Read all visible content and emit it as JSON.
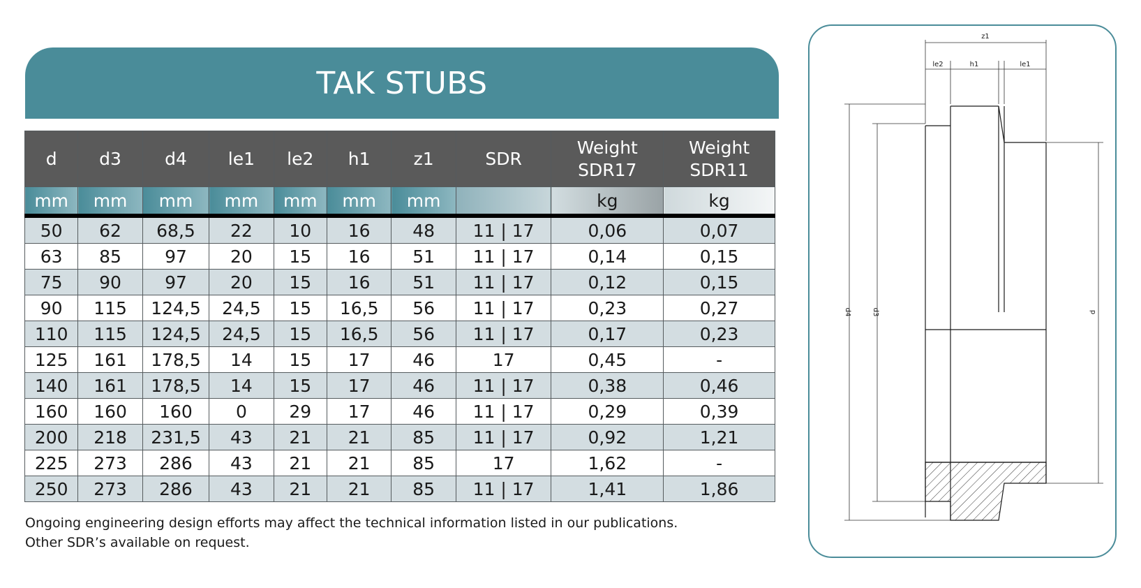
{
  "title": "TAK STUBS",
  "table": {
    "headers": [
      {
        "line1": "d",
        "line2": ""
      },
      {
        "line1": "d3",
        "line2": ""
      },
      {
        "line1": "d4",
        "line2": ""
      },
      {
        "line1": "le1",
        "line2": ""
      },
      {
        "line1": "le2",
        "line2": ""
      },
      {
        "line1": "h1",
        "line2": ""
      },
      {
        "line1": "z1",
        "line2": ""
      },
      {
        "line1": "SDR",
        "line2": ""
      },
      {
        "line1": "Weight",
        "line2": "SDR17"
      },
      {
        "line1": "Weight",
        "line2": "SDR11"
      }
    ],
    "units": [
      "mm",
      "mm",
      "mm",
      "mm",
      "mm",
      "mm",
      "mm",
      "",
      "kg",
      "kg"
    ],
    "rows": [
      [
        "50",
        "62",
        "68,5",
        "22",
        "10",
        "16",
        "48",
        "11 | 17",
        "0,06",
        "0,07"
      ],
      [
        "63",
        "85",
        "97",
        "20",
        "15",
        "16",
        "51",
        "11 | 17",
        "0,14",
        "0,15"
      ],
      [
        "75",
        "90",
        "97",
        "20",
        "15",
        "16",
        "51",
        "11 | 17",
        "0,12",
        "0,15"
      ],
      [
        "90",
        "115",
        "124,5",
        "24,5",
        "15",
        "16,5",
        "56",
        "11 | 17",
        "0,23",
        "0,27"
      ],
      [
        "110",
        "115",
        "124,5",
        "24,5",
        "15",
        "16,5",
        "56",
        "11 | 17",
        "0,17",
        "0,23"
      ],
      [
        "125",
        "161",
        "178,5",
        "14",
        "15",
        "17",
        "46",
        "17",
        "0,45",
        "-"
      ],
      [
        "140",
        "161",
        "178,5",
        "14",
        "15",
        "17",
        "46",
        "11 | 17",
        "0,38",
        "0,46"
      ],
      [
        "160",
        "160",
        "160",
        "0",
        "29",
        "17",
        "46",
        "11 | 17",
        "0,29",
        "0,39"
      ],
      [
        "200",
        "218",
        "231,5",
        "43",
        "21",
        "21",
        "85",
        "11 | 17",
        "0,92",
        "1,21"
      ],
      [
        "225",
        "273",
        "286",
        "43",
        "21",
        "21",
        "85",
        "17",
        "1,62",
        "-"
      ],
      [
        "250",
        "273",
        "286",
        "43",
        "21",
        "21",
        "85",
        "11 | 17",
        "1,41",
        "1,86"
      ]
    ]
  },
  "notes": [
    "Ongoing engineering design efforts may affect the technical information listed in our publications.",
    "Other SDR’s available on request."
  ],
  "diagram": {
    "labels": {
      "z1": "z1",
      "le2": "le2",
      "h1": "h1",
      "le1": "le1",
      "d4": "d4",
      "d3": "d3",
      "d": "d"
    }
  },
  "colors": {
    "brand_teal": "#4a8c99",
    "header_gray": "#5a5a5a",
    "row_alt": "#d3dde1"
  }
}
